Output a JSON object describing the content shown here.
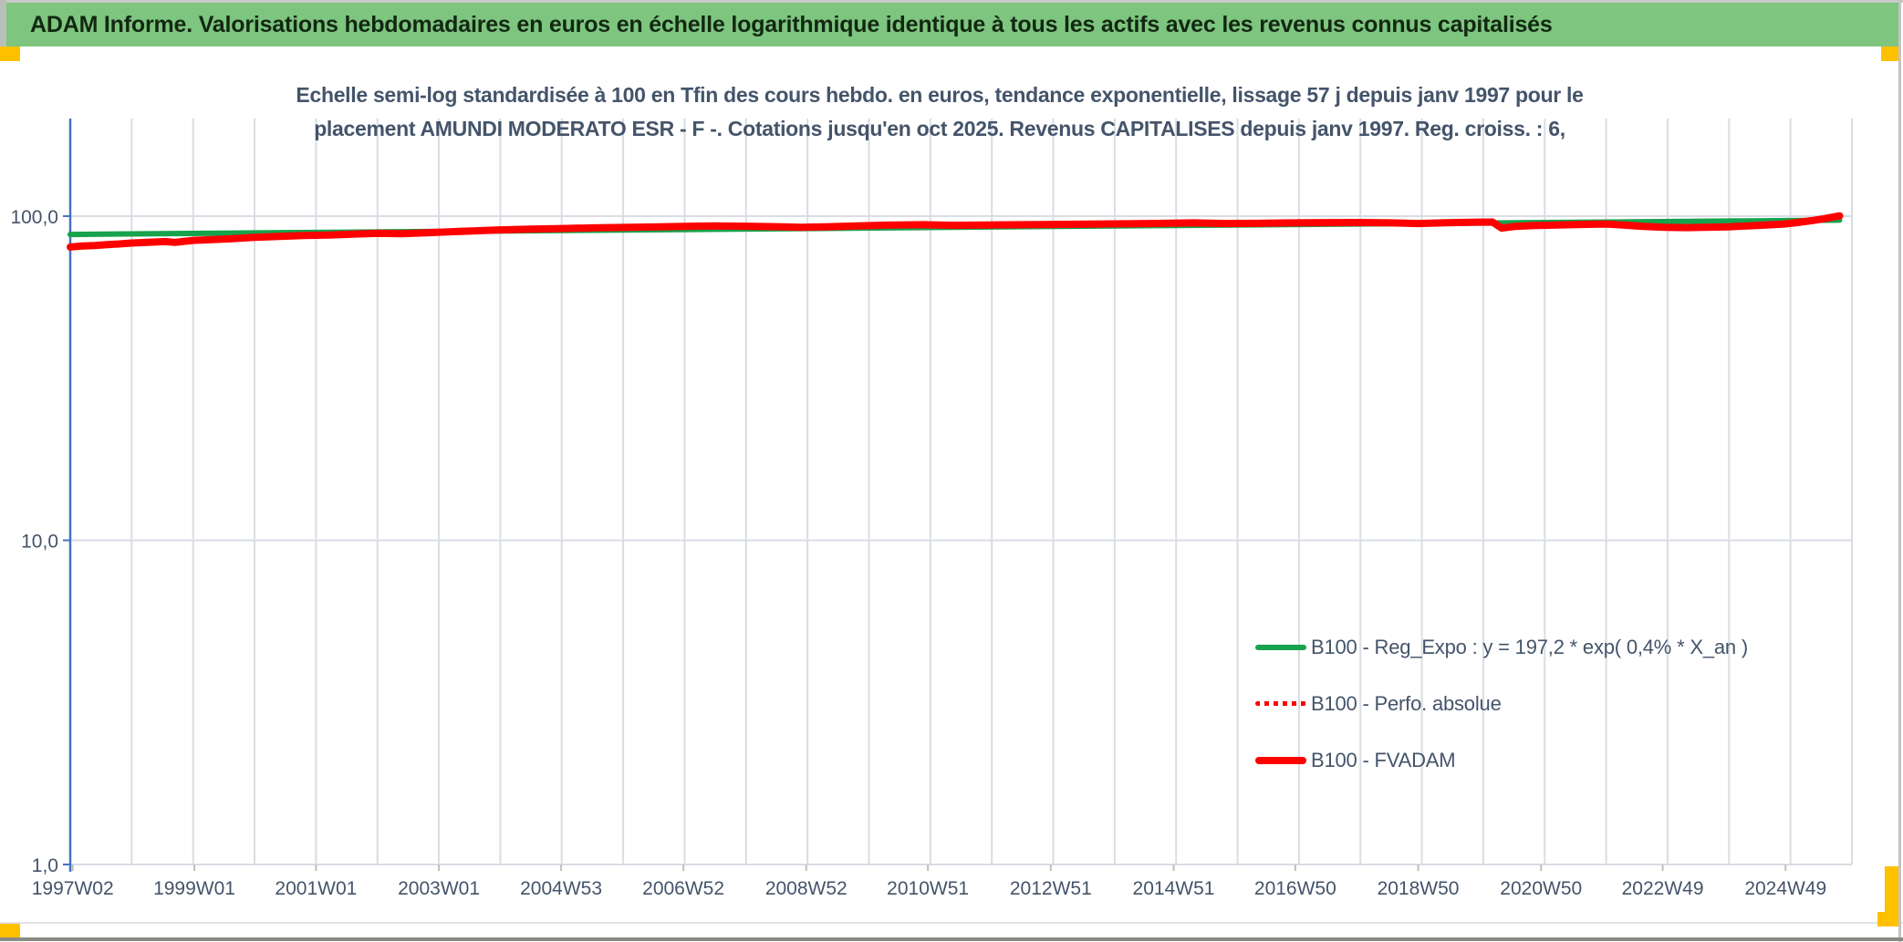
{
  "header": {
    "title": "ADAM Informe. Valorisations hebdomadaires en euros en échelle logarithmique identique à tous les actifs avec les revenus connus capitalisés"
  },
  "chart_title": {
    "line1": "Echelle semi-log standardisée à 100 en Tfin des cours hebdo. en euros, tendance exponentielle, lissage 57 j depuis janv 1997 pour le",
    "line2": "placement AMUNDI MODERATO ESR - F -. Cotations jusqu'en oct 2025. Revenus CAPITALISES depuis janv 1997. Reg. croiss. : 6,"
  },
  "legend": {
    "items": [
      {
        "label": "B100 - Reg_Expo : y = 197,2 * exp( 0,4% *  X_an )"
      },
      {
        "label": "B100 - Perfo. absolue"
      },
      {
        "label": "B100 - FVADAM"
      }
    ]
  },
  "colors": {
    "header_bg": "#7EC57F",
    "header_text": "#122812",
    "accent_yellow": "#FFC000",
    "title_text": "#44546A",
    "grid": "#D9DDE4",
    "tick": "#BFBFBF",
    "axis": "#4472C4",
    "green_series": "#17A24D",
    "red_series": "#FE0000"
  },
  "chart_data": {
    "type": "line",
    "title": "Echelle semi-log standardisée à 100 en Tfin des cours hebdo. en euros, tendance exponentielle, lissage 57 j depuis janv 1997 pour le placement AMUNDI MODERATO ESR - F -. Cotations jusqu'en oct 2025. Revenus CAPITALISES depuis janv 1997. Reg. croiss. : 6,",
    "y_scale": "log",
    "grid": true,
    "legend_position": "inside-right-bottom",
    "x_range": [
      1997,
      2026
    ],
    "y_range": [
      1,
      200
    ],
    "x_ticks": [
      {
        "label": "1997W02",
        "year": 1997.04
      },
      {
        "label": "1999W01",
        "year": 1999.02
      },
      {
        "label": "2001W01",
        "year": 2001.0
      },
      {
        "label": "2003W01",
        "year": 2003.0
      },
      {
        "label": "2004W53",
        "year": 2004.99
      },
      {
        "label": "2006W52",
        "year": 2006.98
      },
      {
        "label": "2008W52",
        "year": 2008.98
      },
      {
        "label": "2010W51",
        "year": 2010.96
      },
      {
        "label": "2012W51",
        "year": 2012.96
      },
      {
        "label": "2014W51",
        "year": 2014.96
      },
      {
        "label": "2016W50",
        "year": 2016.94
      },
      {
        "label": "2018W50",
        "year": 2018.94
      },
      {
        "label": "2020W50",
        "year": 2020.94
      },
      {
        "label": "2022W49",
        "year": 2022.92
      },
      {
        "label": "2024W49",
        "year": 2024.92
      }
    ],
    "y_ticks": [
      {
        "label": "100,0",
        "value": 100
      },
      {
        "label": "10,0",
        "value": 10
      },
      {
        "label": "1,0",
        "value": 1
      }
    ],
    "series": [
      {
        "name": "B100 - Reg_Expo : y = 197,2 * exp( 0,4% *  X_an )",
        "color": "#17A24D",
        "style": "solid",
        "width": 6,
        "points": [
          [
            1997.0,
            87.8
          ],
          [
            2000,
            88.75
          ],
          [
            2003,
            89.7
          ],
          [
            2006,
            90.65
          ],
          [
            2009,
            91.6
          ],
          [
            2012,
            92.6
          ],
          [
            2015,
            93.6
          ],
          [
            2018,
            94.6
          ],
          [
            2021,
            95.6
          ],
          [
            2024,
            96.6
          ],
          [
            2025.8,
            97.2
          ]
        ]
      },
      {
        "name": "B100 - Perfo. absolue",
        "color": "#FE0000",
        "style": "dotted",
        "width": 5,
        "points": [
          [
            1997.0,
            80.3
          ],
          [
            1997.2,
            80.9
          ],
          [
            1997.4,
            81.2
          ],
          [
            1997.6,
            81.7
          ],
          [
            1997.8,
            82.1
          ],
          [
            1998.0,
            82.6
          ],
          [
            1998.3,
            83.1
          ],
          [
            1998.55,
            83.5
          ],
          [
            1998.7,
            83.0
          ],
          [
            1999.0,
            84.2
          ],
          [
            1999.3,
            84.6
          ],
          [
            1999.6,
            85.1
          ],
          [
            2000.0,
            86.0
          ],
          [
            2000.4,
            86.6
          ],
          [
            2000.8,
            87.2
          ],
          [
            2001.2,
            87.4
          ],
          [
            2001.6,
            88.0
          ],
          [
            2002.0,
            88.5
          ],
          [
            2002.4,
            88.3
          ],
          [
            2002.8,
            88.9
          ],
          [
            2003.2,
            89.5
          ],
          [
            2003.6,
            90.1
          ],
          [
            2004.0,
            90.7
          ],
          [
            2004.5,
            91.2
          ],
          [
            2005.0,
            91.6
          ],
          [
            2005.5,
            92.0
          ],
          [
            2006.0,
            92.3
          ],
          [
            2006.5,
            92.6
          ],
          [
            2007.0,
            93.0
          ],
          [
            2007.5,
            93.3
          ],
          [
            2008.0,
            93.1
          ],
          [
            2008.5,
            92.8
          ],
          [
            2008.9,
            92.4
          ],
          [
            2009.3,
            92.7
          ],
          [
            2009.8,
            93.3
          ],
          [
            2010.3,
            93.8
          ],
          [
            2010.9,
            94.1
          ],
          [
            2011.4,
            93.7
          ],
          [
            2011.9,
            93.9
          ],
          [
            2012.5,
            94.1
          ],
          [
            2013.0,
            94.3
          ],
          [
            2013.6,
            94.5
          ],
          [
            2014.2,
            94.7
          ],
          [
            2014.8,
            95.0
          ],
          [
            2015.3,
            95.3
          ],
          [
            2015.8,
            94.9
          ],
          [
            2016.3,
            95.0
          ],
          [
            2016.9,
            95.3
          ],
          [
            2017.5,
            95.5
          ],
          [
            2018.0,
            95.6
          ],
          [
            2018.5,
            95.3
          ],
          [
            2018.95,
            94.9
          ],
          [
            2019.4,
            95.4
          ],
          [
            2019.9,
            95.8
          ],
          [
            2020.15,
            95.9
          ],
          [
            2020.3,
            91.9
          ],
          [
            2020.5,
            92.9
          ],
          [
            2020.8,
            93.5
          ],
          [
            2021.2,
            93.9
          ],
          [
            2021.6,
            94.3
          ],
          [
            2022.0,
            94.6
          ],
          [
            2022.3,
            93.8
          ],
          [
            2022.6,
            93.0
          ],
          [
            2022.95,
            92.4
          ],
          [
            2023.3,
            92.2
          ],
          [
            2023.7,
            92.5
          ],
          [
            2024.0,
            92.7
          ],
          [
            2024.3,
            93.3
          ],
          [
            2024.6,
            93.9
          ],
          [
            2024.9,
            94.6
          ],
          [
            2025.1,
            95.5
          ],
          [
            2025.35,
            96.9
          ],
          [
            2025.55,
            98.2
          ],
          [
            2025.8,
            100.2
          ]
        ]
      },
      {
        "name": "B100 - FVADAM",
        "color": "#FE0000",
        "style": "solid",
        "width": 8,
        "points": [
          [
            1997.0,
            80.3
          ],
          [
            1997.2,
            80.9
          ],
          [
            1997.4,
            81.2
          ],
          [
            1997.6,
            81.7
          ],
          [
            1997.8,
            82.1
          ],
          [
            1998.0,
            82.6
          ],
          [
            1998.3,
            83.1
          ],
          [
            1998.55,
            83.5
          ],
          [
            1998.7,
            83.0
          ],
          [
            1999.0,
            84.2
          ],
          [
            1999.3,
            84.6
          ],
          [
            1999.6,
            85.1
          ],
          [
            2000.0,
            86.0
          ],
          [
            2000.4,
            86.6
          ],
          [
            2000.8,
            87.2
          ],
          [
            2001.2,
            87.4
          ],
          [
            2001.6,
            88.0
          ],
          [
            2002.0,
            88.5
          ],
          [
            2002.4,
            88.3
          ],
          [
            2002.8,
            88.9
          ],
          [
            2003.2,
            89.5
          ],
          [
            2003.6,
            90.1
          ],
          [
            2004.0,
            90.7
          ],
          [
            2004.5,
            91.2
          ],
          [
            2005.0,
            91.6
          ],
          [
            2005.5,
            92.0
          ],
          [
            2006.0,
            92.3
          ],
          [
            2006.5,
            92.6
          ],
          [
            2007.0,
            93.0
          ],
          [
            2007.5,
            93.3
          ],
          [
            2008.0,
            93.1
          ],
          [
            2008.5,
            92.8
          ],
          [
            2008.9,
            92.4
          ],
          [
            2009.3,
            92.7
          ],
          [
            2009.8,
            93.3
          ],
          [
            2010.3,
            93.8
          ],
          [
            2010.9,
            94.1
          ],
          [
            2011.4,
            93.7
          ],
          [
            2011.9,
            93.9
          ],
          [
            2012.5,
            94.1
          ],
          [
            2013.0,
            94.3
          ],
          [
            2013.6,
            94.5
          ],
          [
            2014.2,
            94.7
          ],
          [
            2014.8,
            95.0
          ],
          [
            2015.3,
            95.3
          ],
          [
            2015.8,
            94.9
          ],
          [
            2016.3,
            95.0
          ],
          [
            2016.9,
            95.3
          ],
          [
            2017.5,
            95.5
          ],
          [
            2018.0,
            95.6
          ],
          [
            2018.5,
            95.3
          ],
          [
            2018.95,
            94.9
          ],
          [
            2019.4,
            95.4
          ],
          [
            2019.9,
            95.8
          ],
          [
            2020.15,
            95.9
          ],
          [
            2020.3,
            91.9
          ],
          [
            2020.5,
            92.9
          ],
          [
            2020.8,
            93.5
          ],
          [
            2021.2,
            93.9
          ],
          [
            2021.6,
            94.3
          ],
          [
            2022.0,
            94.6
          ],
          [
            2022.3,
            93.8
          ],
          [
            2022.6,
            93.0
          ],
          [
            2022.95,
            92.4
          ],
          [
            2023.3,
            92.2
          ],
          [
            2023.7,
            92.5
          ],
          [
            2024.0,
            92.7
          ],
          [
            2024.3,
            93.3
          ],
          [
            2024.6,
            93.9
          ],
          [
            2024.9,
            94.6
          ],
          [
            2025.1,
            95.5
          ],
          [
            2025.35,
            96.9
          ],
          [
            2025.55,
            98.2
          ],
          [
            2025.8,
            100.2
          ]
        ]
      }
    ]
  }
}
